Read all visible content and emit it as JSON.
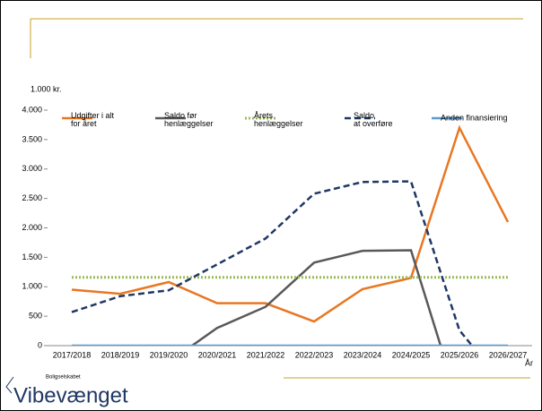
{
  "chart_data": {
    "type": "line",
    "y_label": "1.000 kr.",
    "x_label": "År",
    "categories": [
      "2017/2018",
      "2018/2019",
      "2019/2020",
      "2020/2021",
      "2021/2022",
      "2022/2023",
      "2023/2024",
      "2024/2025",
      "2025/2026",
      "2026/2027"
    ],
    "ylim": [
      0,
      4000
    ],
    "yticks": [
      0,
      500,
      {
        "value": 1000,
        "label": "1.000"
      },
      {
        "value": 1500,
        "label": "1.500"
      },
      {
        "value": 2000,
        "label": "2.000"
      },
      {
        "value": 2500,
        "label": "2.500"
      },
      {
        "value": 3000,
        "label": "3.000"
      },
      {
        "value": 3500,
        "label": "3.500"
      },
      {
        "value": 4000,
        "label": "4.000"
      }
    ],
    "series": [
      {
        "name": "Udgifter i alt\nfor året",
        "color": "#e87722",
        "style": "solid",
        "values": [
          950,
          880,
          1080,
          720,
          720,
          410,
          960,
          1150,
          3700,
          2100
        ]
      },
      {
        "name": "Saldo før\nhenlæggelser",
        "color": "#595959",
        "style": "solid",
        "values": [
          null,
          null,
          -280,
          300,
          660,
          1410,
          1610,
          1620,
          -1030,
          null
        ]
      },
      {
        "name": "Årets\nhenlæggelser",
        "color": "#9bbb59",
        "style": "dotted",
        "values": [
          1160,
          1160,
          1160,
          1160,
          1160,
          1160,
          1160,
          1160,
          1160,
          1160
        ]
      },
      {
        "name": "Saldo\nat overføre",
        "color": "#1f3864",
        "style": "dashed",
        "values": [
          570,
          840,
          940,
          1380,
          1820,
          2580,
          2780,
          2790,
          260,
          -740
        ]
      },
      {
        "name": "Anden finansiering",
        "color": "#5b9bd5",
        "style": "solid",
        "values": [
          0,
          0,
          0,
          0,
          0,
          0,
          0,
          0,
          0,
          0
        ]
      }
    ]
  },
  "logo": {
    "small": "Boligselskabet",
    "name": "Vibevænget"
  }
}
